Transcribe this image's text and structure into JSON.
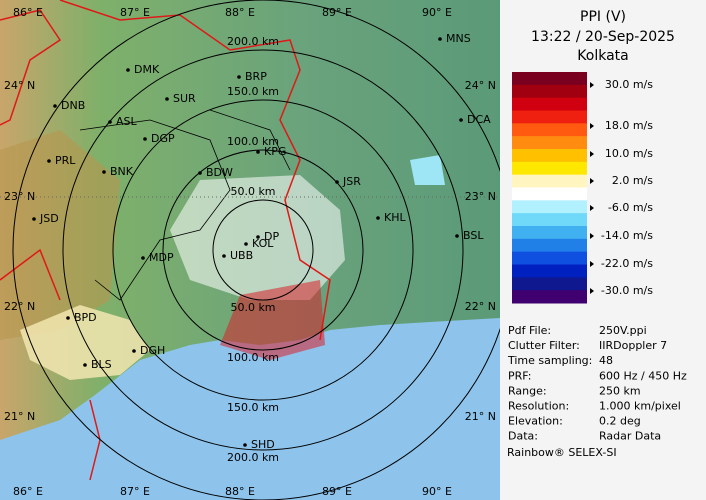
{
  "header": {
    "title": "PPI (V)",
    "time": "13:22 / 20-Sep-2025",
    "station": "Kolkata"
  },
  "legend": {
    "labels": [
      "30.0 m/s",
      "18.0 m/s",
      "10.0 m/s",
      "2.0 m/s",
      "-6.0 m/s",
      "-14.0 m/s",
      "-22.0 m/s",
      "-30.0 m/s"
    ]
  },
  "info": {
    "rows": [
      [
        "Pdf File:",
        "250V.ppi"
      ],
      [
        "Clutter Filter:",
        "IIRDoppler 7"
      ],
      [
        "Time sampling:",
        "48"
      ],
      [
        "PRF:",
        "600 Hz / 450 Hz"
      ],
      [
        "Range:",
        "250 km"
      ],
      [
        "Resolution:",
        "1.000 km/pixel"
      ],
      [
        "Elevation:",
        "0.2 deg"
      ],
      [
        "Data:",
        "Radar Data"
      ]
    ]
  },
  "footer": "Rainbow® SELEX-SI",
  "map": {
    "lon_labels": [
      "86° E",
      "87° E",
      "88° E",
      "89° E",
      "90° E"
    ],
    "lat_labels": [
      "24° N",
      "23° N",
      "22° N",
      "21° N"
    ],
    "range_labels": [
      "50.0 km",
      "100.0 km",
      "150.0 km",
      "200.0 km"
    ],
    "cities": [
      "MNS",
      "DMK",
      "BRP",
      "DNB",
      "SUR",
      "DCA",
      "ASL",
      "DGP",
      "KPG",
      "PRL",
      "BNK",
      "BDW",
      "JSR",
      "KHL",
      "JSD",
      "DP",
      "KOL",
      "UBB",
      "MDP",
      "BSL",
      "BPD",
      "DGH",
      "BLS",
      "SHD"
    ]
  }
}
